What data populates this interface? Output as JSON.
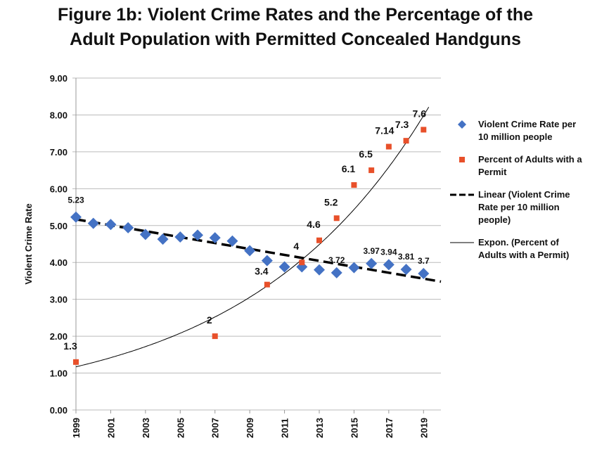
{
  "chart_data": {
    "type": "scatter",
    "title": "Figure 1b: Violent Crime Rates and the Percentage of the Adult Population with Permitted Concealed Handguns",
    "ylabel": "Violent Crime Rate",
    "xlabel": "",
    "ylim": [
      0,
      9
    ],
    "xlim": [
      1999,
      2020
    ],
    "yticks": [
      "0.00",
      "1.00",
      "2.00",
      "3.00",
      "4.00",
      "5.00",
      "6.00",
      "7.00",
      "8.00",
      "9.00"
    ],
    "xticks": [
      "1999",
      "2001",
      "2003",
      "2005",
      "2007",
      "2009",
      "2011",
      "2013",
      "2015",
      "2017",
      "2019"
    ],
    "grid": "horizontal",
    "legend_position": "right",
    "series": [
      {
        "name": "Violent Crime Rate per 10 million people",
        "color": "#4472C4",
        "marker": "diamond",
        "x": [
          1999,
          2000,
          2001,
          2002,
          2003,
          2004,
          2005,
          2006,
          2007,
          2008,
          2009,
          2010,
          2011,
          2012,
          2013,
          2014,
          2015,
          2016,
          2017,
          2018,
          2019
        ],
        "values": [
          5.23,
          5.06,
          5.03,
          4.94,
          4.76,
          4.63,
          4.69,
          4.74,
          4.67,
          4.58,
          4.32,
          4.05,
          3.88,
          3.88,
          3.8,
          3.72,
          3.86,
          3.97,
          3.94,
          3.81,
          3.7
        ],
        "labels": {
          "1999": "5.23",
          "2014": "3.72",
          "2016": "3.97",
          "2017": "3.94",
          "2018": "3.81",
          "2019": "3.7"
        }
      },
      {
        "name": "Percent of Adults with a Permit",
        "color": "#E8502A",
        "marker": "square",
        "x": [
          1999,
          2007,
          2010,
          2012,
          2013,
          2014,
          2015,
          2016,
          2017,
          2018,
          2019
        ],
        "values": [
          1.3,
          2,
          3.4,
          4,
          4.6,
          5.2,
          6.1,
          6.5,
          7.14,
          7.3,
          7.6
        ],
        "labels": [
          "1.3",
          "2",
          "3.4",
          "4",
          "4.6",
          "5.2",
          "6.1",
          "6.5",
          "7.14",
          "7.3",
          "7.6"
        ]
      },
      {
        "name": "Linear (Violent Crime Rate per 10 million people)",
        "type": "trendline-linear",
        "color": "#000000",
        "dash": true,
        "start": 5.17,
        "end": 3.48
      },
      {
        "name": "Expon. (Percent of Adults with a Permit)",
        "type": "trendline-exponential",
        "color": "#000000",
        "a": 1.17,
        "growth": 0.096
      }
    ]
  }
}
